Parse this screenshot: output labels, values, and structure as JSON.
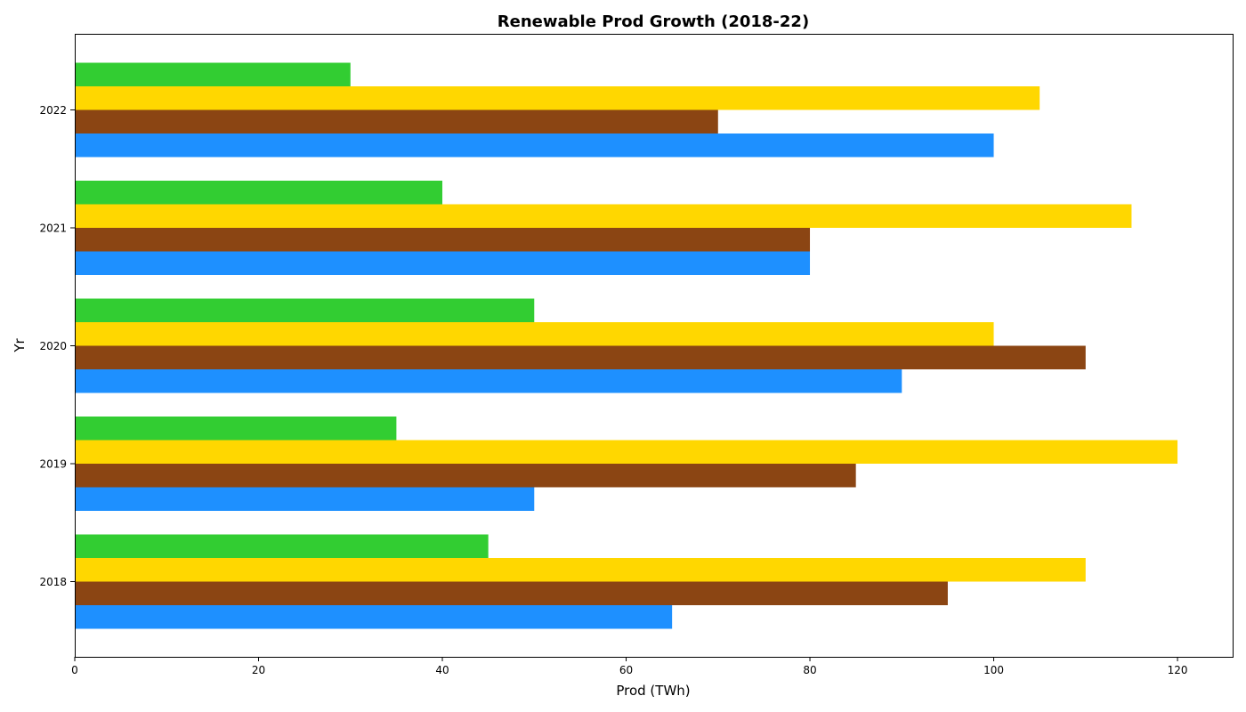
{
  "chart_data": {
    "type": "bar",
    "orientation": "horizontal",
    "title": "Renewable Prod Growth (2018-22)",
    "xlabel": "Prod (TWh)",
    "ylabel": "Yr",
    "xlim": [
      0,
      126
    ],
    "xticks": [
      0,
      20,
      40,
      60,
      80,
      100,
      120
    ],
    "categories": [
      "2018",
      "2019",
      "2020",
      "2021",
      "2022"
    ],
    "grid": false,
    "series": [
      {
        "color": "#1E90FF",
        "values": [
          65,
          50,
          90,
          80,
          100
        ]
      },
      {
        "color": "#8B4513",
        "values": [
          95,
          85,
          110,
          80,
          70
        ]
      },
      {
        "color": "#FFD700",
        "values": [
          110,
          120,
          100,
          115,
          105
        ]
      },
      {
        "color": "#32CD32",
        "values": [
          45,
          35,
          50,
          40,
          30
        ]
      }
    ]
  }
}
